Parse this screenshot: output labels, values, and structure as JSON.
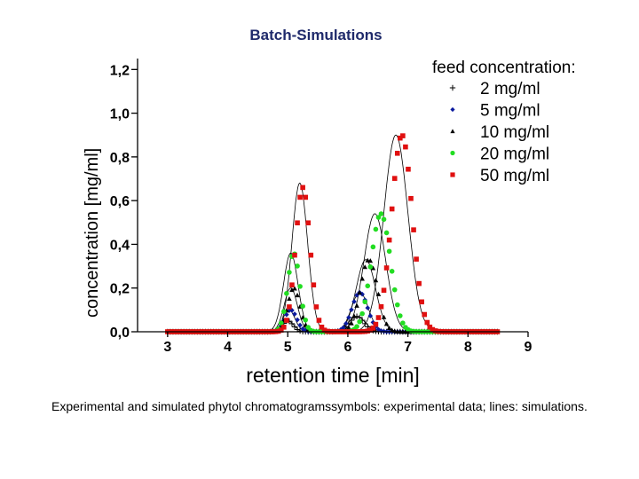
{
  "slide": {
    "title": "Batch-Simulations",
    "caption": "Experimental and simulated phytol chromatogramssymbols: experimental data; lines: simulations."
  },
  "colors": {
    "title": "#1f2a6b",
    "axis": "#000000",
    "simulation_line": "#000000"
  },
  "chart_data": {
    "type": "scatter",
    "xlabel": "retention time [min]",
    "ylabel": "concentration [mg/ml]",
    "xlim": [
      2.5,
      9
    ],
    "ylim": [
      0,
      1.25
    ],
    "x_ticks": [
      3,
      4,
      5,
      6,
      7,
      8,
      9
    ],
    "x_tick_labels": [
      "3",
      "4",
      "5",
      "6",
      "7",
      "8",
      "9"
    ],
    "y_ticks": [
      0,
      0.2,
      0.4,
      0.6,
      0.8,
      1.0,
      1.2
    ],
    "y_tick_labels": [
      "0,0",
      "0,2",
      "0,4",
      "0,6",
      "0,8",
      "1,0",
      "1,2"
    ],
    "grid": false,
    "legend_title": "feed concentration:",
    "legend_position": "top-right",
    "series": [
      {
        "name": "2 mg/ml",
        "marker": "plus",
        "color": "#000000",
        "peaks": [
          [
            5.0,
            0.05,
            0.09
          ],
          [
            6.15,
            0.07,
            0.12
          ]
        ]
      },
      {
        "name": "5 mg/ml",
        "marker": "diamond",
        "color": "#0a1a9e",
        "peaks": [
          [
            5.05,
            0.1,
            0.1
          ],
          [
            6.2,
            0.18,
            0.13
          ]
        ]
      },
      {
        "name": "10 mg/ml",
        "marker": "triangle",
        "color": "#000000",
        "peaks": [
          [
            5.1,
            0.2,
            0.1
          ],
          [
            6.35,
            0.33,
            0.14
          ]
        ]
      },
      {
        "name": "20 mg/ml",
        "marker": "circle",
        "color": "#22dd22",
        "peaks": [
          [
            5.1,
            0.36,
            0.1
          ],
          [
            6.55,
            0.54,
            0.16
          ]
        ]
      },
      {
        "name": "50 mg/ml",
        "marker": "square",
        "color": "#e01010",
        "peaks": [
          [
            5.25,
            0.66,
            0.12
          ],
          [
            6.9,
            0.9,
            0.17
          ]
        ]
      }
    ],
    "simulations": [
      {
        "peaks": [
          [
            5.0,
            0.05,
            0.1
          ],
          [
            6.15,
            0.07,
            0.14
          ]
        ]
      },
      {
        "peaks": [
          [
            5.02,
            0.1,
            0.1
          ],
          [
            6.2,
            0.18,
            0.14
          ]
        ]
      },
      {
        "peaks": [
          [
            5.05,
            0.2,
            0.11
          ],
          [
            6.3,
            0.33,
            0.16
          ]
        ]
      },
      {
        "peaks": [
          [
            5.05,
            0.36,
            0.12
          ],
          [
            6.45,
            0.54,
            0.18
          ]
        ]
      },
      {
        "peaks": [
          [
            5.2,
            0.68,
            0.13
          ],
          [
            6.8,
            0.9,
            0.2
          ]
        ]
      }
    ]
  }
}
